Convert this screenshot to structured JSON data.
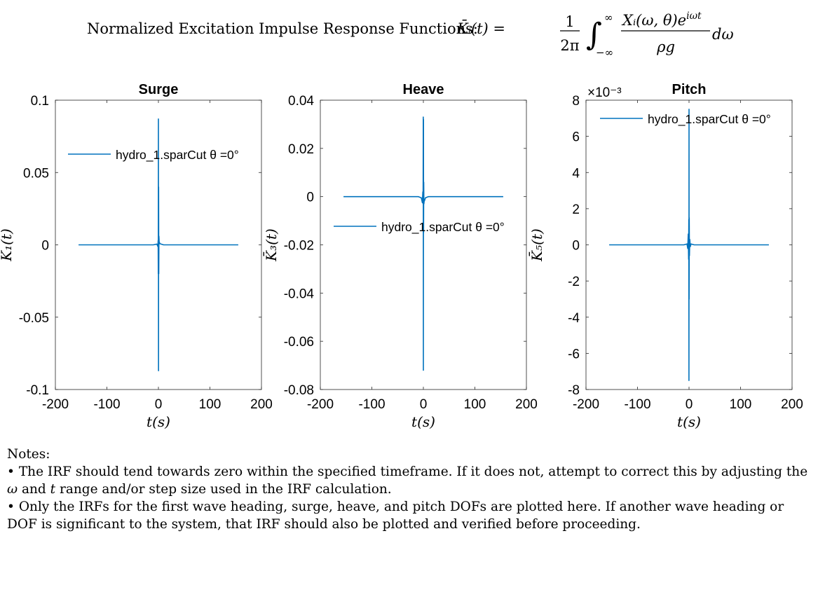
{
  "figure": {
    "title_text": "Normalized Excitation Impulse Response Functions:",
    "title_formula": {
      "lhs": "K̄ᵢ(t) =",
      "frac1_num": "1",
      "frac1_den": "2π",
      "integral": "∫",
      "int_upper": "∞",
      "int_lower": "−∞",
      "frac2_num": "Xᵢ(ω, θ)e",
      "frac2_num_sup": "iωt",
      "frac2_den": "ρg",
      "tail": "dω"
    }
  },
  "chart_data": [
    {
      "type": "line",
      "title": "Surge",
      "xlabel": "t(s)",
      "ylabel": "K̄₁(t)",
      "xlim": [
        -200,
        200
      ],
      "ylim": [
        -0.1,
        0.1
      ],
      "xticks": [
        -200,
        -100,
        0,
        100,
        200
      ],
      "xtick_labels": [
        "-200",
        "-100",
        "0",
        "100",
        "200"
      ],
      "yticks": [
        -0.1,
        -0.05,
        0,
        0.05,
        0.1
      ],
      "ytick_labels": [
        "-0.1",
        "-0.05",
        "0",
        "0.05",
        "0.1"
      ],
      "exponent_label": "",
      "legend": "top-left",
      "series": [
        {
          "name": "hydro_1.sparCut θ =0°",
          "color": "#0072BD",
          "x": [
            -155,
            -40,
            -10,
            -3,
            -1,
            -0.5,
            -0.2,
            0,
            0.2,
            0.4,
            0.7,
            1.0,
            1.5,
            3,
            10,
            40,
            155
          ],
          "y": [
            0,
            0,
            0,
            0.0005,
            -0.0012,
            0.003,
            -0.02,
            0.087,
            -0.087,
            0.04,
            -0.02,
            0.006,
            0.002,
            0.0008,
            0,
            0,
            0
          ]
        }
      ]
    },
    {
      "type": "line",
      "title": "Heave",
      "xlabel": "t(s)",
      "ylabel": "K̄₃(t)",
      "xlim": [
        -200,
        200
      ],
      "ylim": [
        -0.08,
        0.04
      ],
      "xticks": [
        -200,
        -100,
        0,
        100,
        200
      ],
      "xtick_labels": [
        "-200",
        "-100",
        "0",
        "100",
        "200"
      ],
      "yticks": [
        -0.08,
        -0.06,
        -0.04,
        -0.02,
        0,
        0.02,
        0.04
      ],
      "ytick_labels": [
        "-0.08",
        "-0.06",
        "-0.04",
        "-0.02",
        "0",
        "0.02",
        "0.04"
      ],
      "exponent_label": "",
      "legend": "middle-left",
      "series": [
        {
          "name": "hydro_1.sparCut θ =0°",
          "color": "#0072BD",
          "x": [
            -155,
            -40,
            -10,
            -4,
            -2,
            -1,
            -0.5,
            -0.2,
            0,
            0.2,
            0.4,
            0.7,
            1.0,
            1.5,
            2.5,
            4,
            10,
            40,
            155
          ],
          "y": [
            0,
            0,
            0,
            -0.0005,
            -0.0025,
            0.002,
            -0.003,
            0.033,
            -0.072,
            0.032,
            -0.015,
            0.006,
            -0.003,
            -0.002,
            -0.0015,
            -0.0005,
            0,
            0,
            0
          ]
        }
      ]
    },
    {
      "type": "line",
      "title": "Pitch",
      "xlabel": "t(s)",
      "ylabel": "K̄₅(t)",
      "xlim": [
        -200,
        200
      ],
      "ylim": [
        -0.008,
        0.008
      ],
      "xticks": [
        -200,
        -100,
        0,
        100,
        200
      ],
      "xtick_labels": [
        "-200",
        "-100",
        "0",
        "100",
        "200"
      ],
      "yticks": [
        -0.008,
        -0.006,
        -0.004,
        -0.002,
        0,
        0.002,
        0.004,
        0.006,
        0.008
      ],
      "ytick_labels": [
        "-8",
        "-6",
        "-4",
        "-2",
        "0",
        "2",
        "4",
        "6",
        "8"
      ],
      "exponent_label": "×10⁻³",
      "legend": "top",
      "series": [
        {
          "name": "hydro_1.sparCut θ =0°",
          "color": "#0072BD",
          "x": [
            -155,
            -40,
            -10,
            -4,
            -2.5,
            -1.5,
            -0.8,
            -0.4,
            -0.15,
            0,
            0.15,
            0.4,
            0.8,
            1.5,
            2.5,
            4,
            10,
            40,
            155
          ],
          "y": [
            0,
            0,
            0,
            5e-05,
            -0.0002,
            0.0006,
            -0.0008,
            0.0014,
            -0.0075,
            0.0075,
            -0.003,
            0.0015,
            -0.0006,
            0.0003,
            -0.0001,
            5e-05,
            0,
            0,
            0
          ]
        }
      ]
    }
  ],
  "notes": {
    "heading": "Notes:",
    "items": [
      {
        "bullet": "•",
        "parts": [
          "The IRF should tend towards zero within the specified timeframe. If it does not, attempt to correct this by adjusting the ",
          "ω",
          " and ",
          "t",
          " range and/or step size used in the IRF calculation."
        ]
      },
      {
        "bullet": "•",
        "parts": [
          "Only the IRFs for the first wave heading, surge, heave, and pitch DOFs are plotted here. If another wave heading or DOF is significant to the system, that IRF should also be plotted and verified before proceeding."
        ]
      }
    ]
  }
}
